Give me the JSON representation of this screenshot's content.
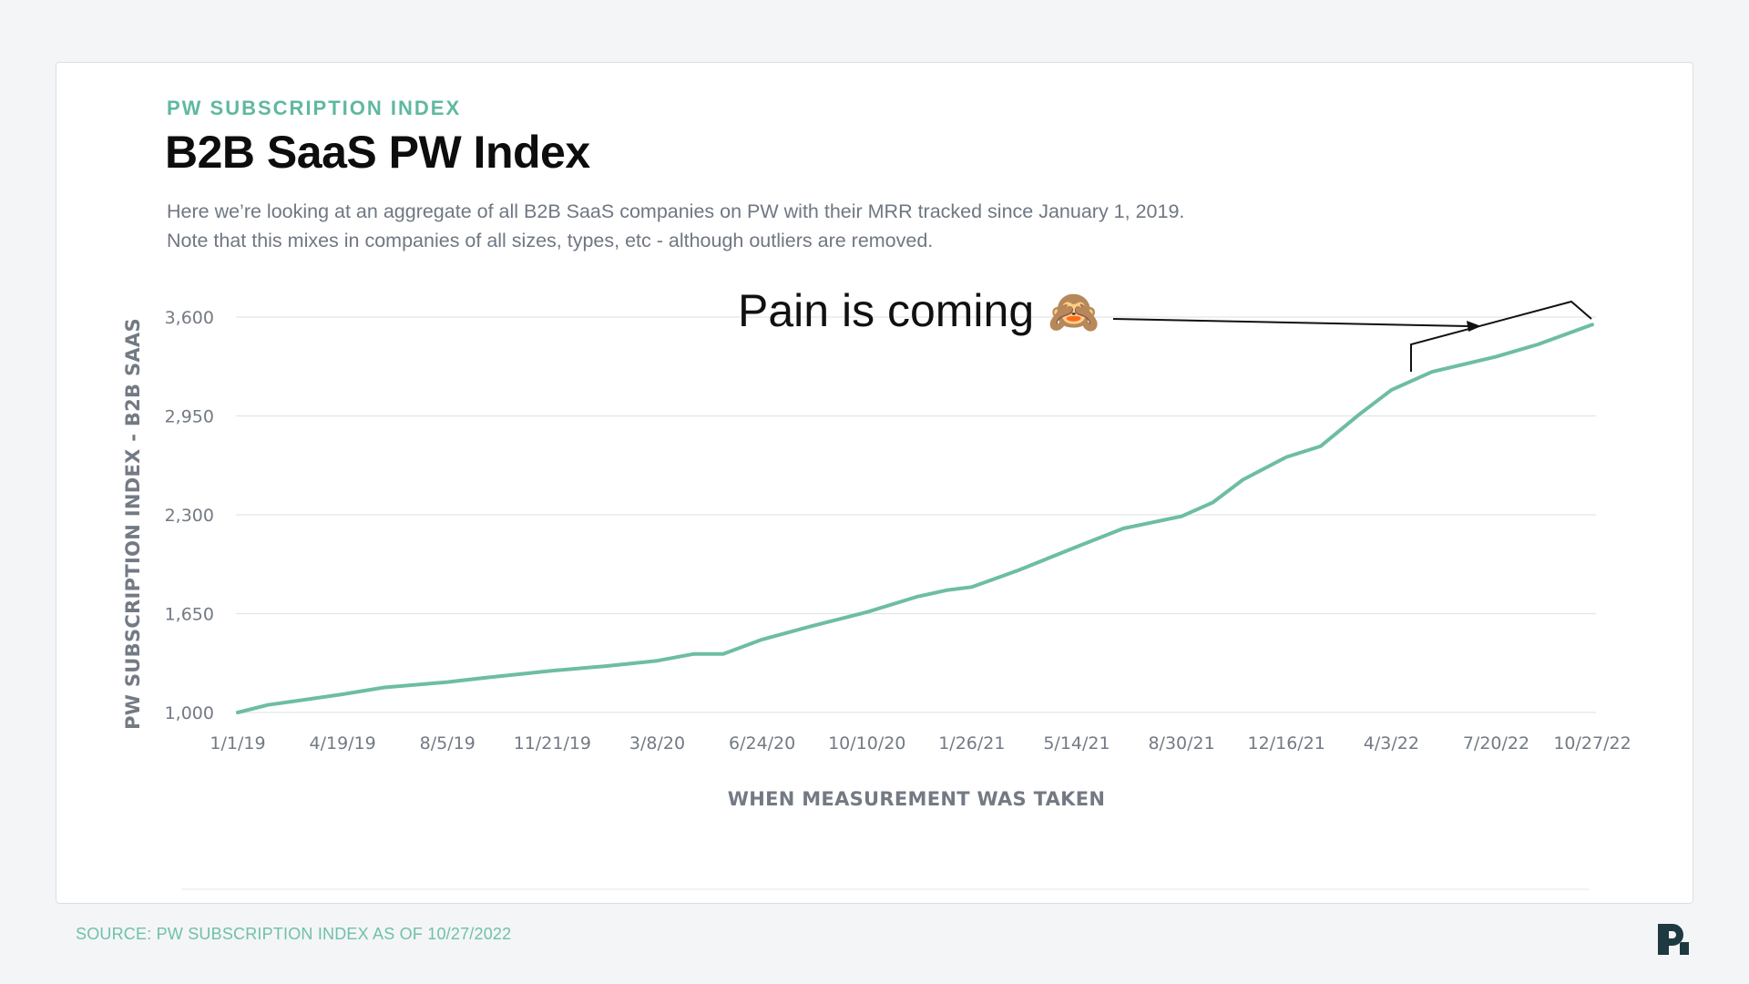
{
  "header": {
    "eyebrow": "PW SUBSCRIPTION INDEX",
    "title": "B2B SaaS PW Index",
    "description": "Here we’re looking at an aggregate of all B2B SaaS companies on PW with their MRR tracked since January 1, 2019. Note that this mixes in companies of all sizes, types, etc - although outliers are removed."
  },
  "annotation": {
    "text": "Pain is coming",
    "emoji": "🙈"
  },
  "footer": {
    "source": "SOURCE: PW SUBSCRIPTION INDEX AS OF 10/27/2022"
  },
  "colors": {
    "accent": "#5fb8a0",
    "line": "#6dbda4",
    "grid": "#e3e5e8",
    "logo": "#1e3a40"
  },
  "chart_data": {
    "type": "line",
    "title": "B2B SaaS PW Index",
    "xlabel": "WHEN MEASUREMENT WAS TAKEN",
    "ylabel": "PW SUBSCRIPTION INDEX - B2B SAAS",
    "ylim": [
      1000,
      3600
    ],
    "yticks": [
      1000,
      1650,
      2300,
      2950,
      3600
    ],
    "ytick_labels": [
      "1,000",
      "1,650",
      "2,300",
      "2,950",
      "3,600"
    ],
    "xtick_labels": [
      "1/1/19",
      "4/19/19",
      "8/5/19",
      "11/21/19",
      "3/8/20",
      "6/24/20",
      "10/10/20",
      "1/26/21",
      "5/14/21",
      "8/30/21",
      "12/16/21",
      "4/3/22",
      "7/20/22",
      "10/27/22"
    ],
    "grid": true,
    "series": [
      {
        "x": [
          "1/1/19",
          "2/1/19",
          "3/1/19",
          "4/19/19",
          "6/1/19",
          "8/5/19",
          "9/15/19",
          "11/21/19",
          "1/15/20",
          "3/8/20",
          "4/15/20",
          "5/15/20",
          "6/24/20",
          "8/15/20",
          "10/10/20",
          "11/30/20",
          "1/1/21",
          "1/26/21",
          "3/15/21",
          "5/14/21",
          "7/1/21",
          "8/30/21",
          "10/1/21",
          "11/1/21",
          "12/16/21",
          "1/20/22",
          "3/1/22",
          "4/3/22",
          "5/15/22",
          "7/20/22",
          "9/1/22",
          "10/27/22"
        ],
        "values": [
          1000,
          1050,
          1075,
          1120,
          1165,
          1200,
          1230,
          1275,
          1305,
          1340,
          1385,
          1385,
          1480,
          1570,
          1660,
          1760,
          1805,
          1825,
          1935,
          2090,
          2210,
          2290,
          2380,
          2530,
          2680,
          2750,
          2960,
          3120,
          3240,
          3340,
          3420,
          3550
        ]
      }
    ]
  }
}
